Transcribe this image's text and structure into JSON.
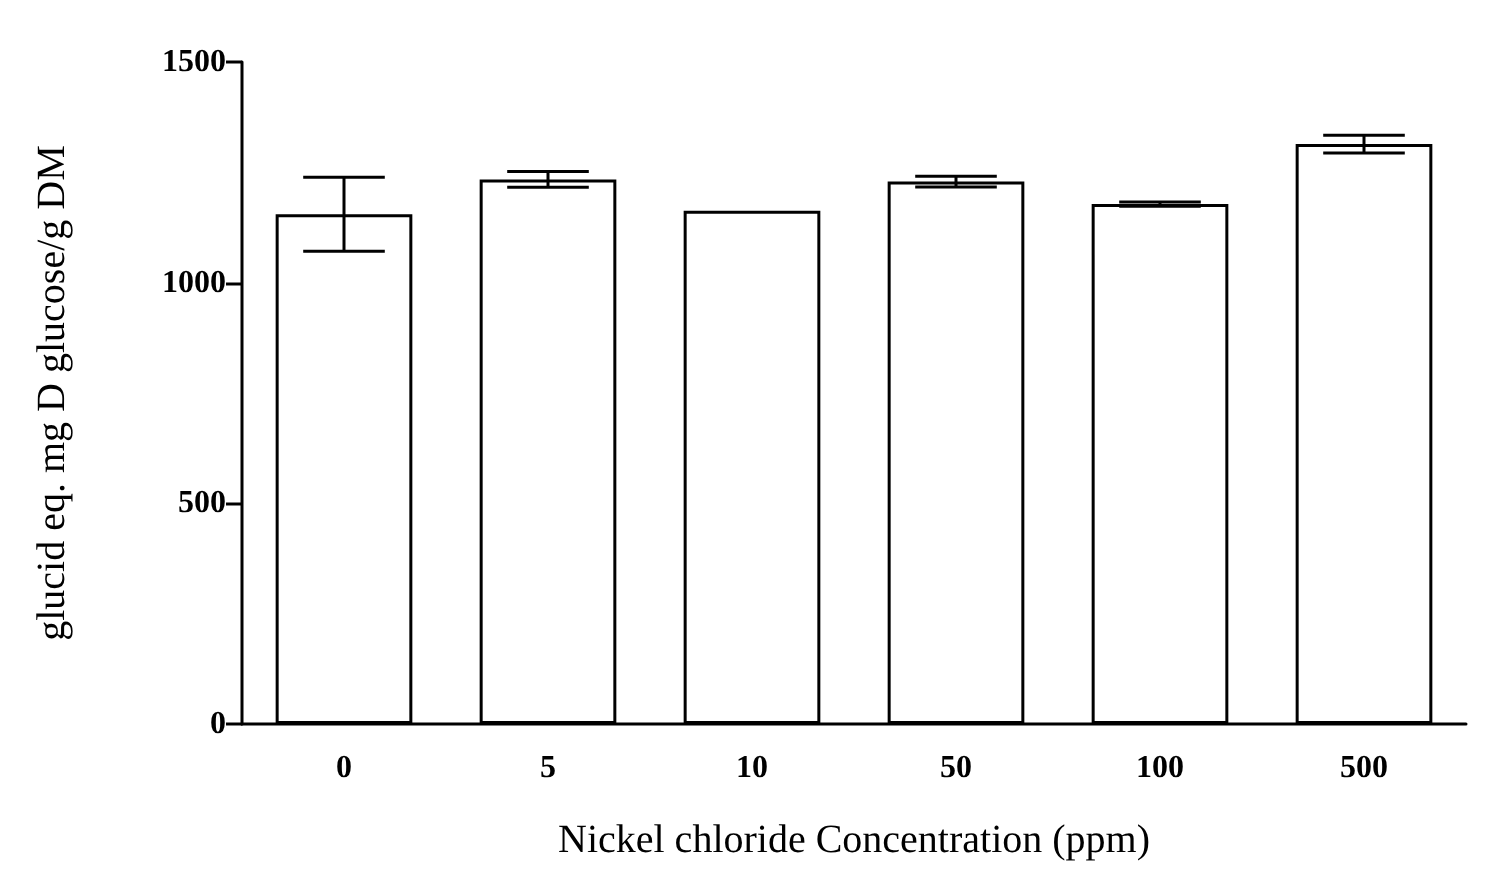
{
  "chart_data": {
    "type": "bar",
    "categories": [
      "0",
      "5",
      "10",
      "50",
      "100",
      "500"
    ],
    "values": [
      1155,
      1234,
      1163,
      1229,
      1178,
      1314
    ],
    "errors": [
      84,
      18,
      null,
      12,
      5,
      20
    ],
    "color": "#ffffff",
    "xlabel": "Nickel chloride Concentration (ppm)",
    "ylabel": "glucid eq. mg D glucose/g DM",
    "ylim": [
      0,
      1500
    ],
    "yticks": [
      0,
      500,
      1000,
      1500
    ],
    "grid": false
  }
}
